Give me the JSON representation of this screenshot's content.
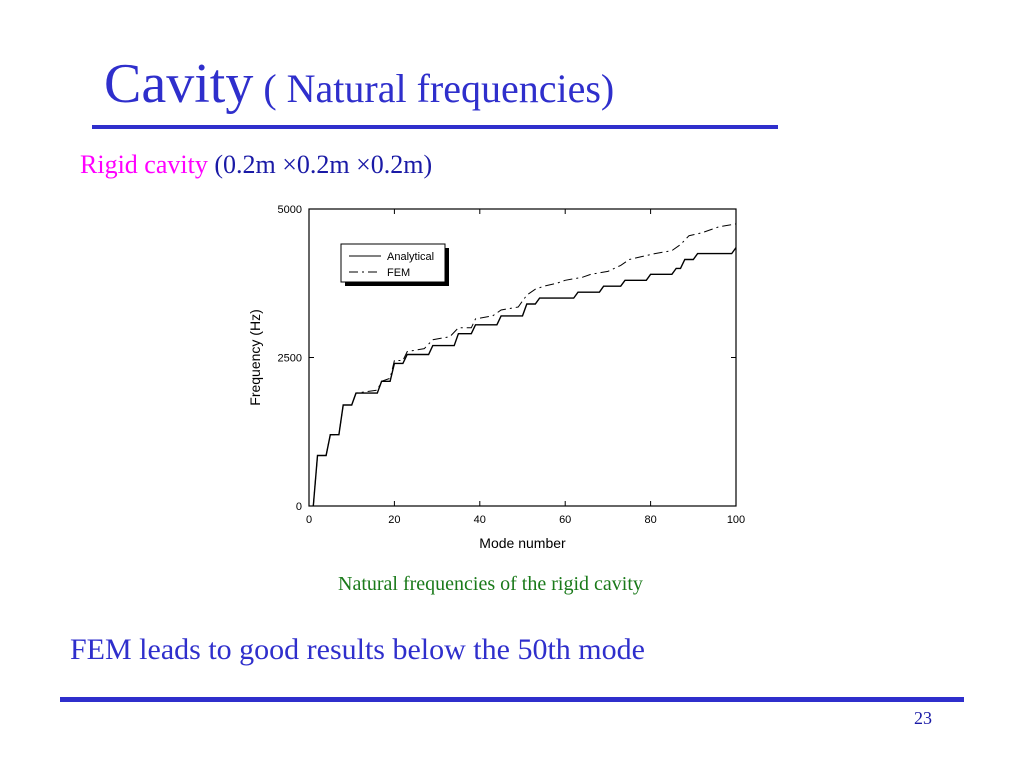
{
  "slide": {
    "title_main": "Cavity",
    "title_sub": " ( Natural frequencies)",
    "subtitle_accent": "Rigid cavity",
    "subtitle_dims": " (0.2m ×0.2m ×0.2m)",
    "caption": "Natural frequencies of the rigid cavity",
    "conclusion": "FEM leads to good results below the 50th mode",
    "page_number": "23",
    "colors": {
      "title": "#2f2fcc",
      "accent": "#ff00ff",
      "caption": "#1a7a1a"
    }
  },
  "chart_data": {
    "type": "line",
    "xlabel": "Mode number",
    "ylabel": "Frequency (Hz)",
    "xlim": [
      0,
      100
    ],
    "ylim": [
      0,
      5000
    ],
    "xticks": [
      0,
      20,
      40,
      60,
      80,
      100
    ],
    "yticks": [
      0,
      2500,
      5000
    ],
    "legend_position": "top-left",
    "series": [
      {
        "name": "Analytical",
        "style": "solid",
        "points": [
          [
            1,
            0
          ],
          [
            2,
            850
          ],
          [
            4,
            850
          ],
          [
            5,
            1200
          ],
          [
            7,
            1200
          ],
          [
            8,
            1700
          ],
          [
            10,
            1700
          ],
          [
            11,
            1900
          ],
          [
            16,
            1900
          ],
          [
            17,
            2100
          ],
          [
            19,
            2100
          ],
          [
            20,
            2400
          ],
          [
            22,
            2400
          ],
          [
            23,
            2550
          ],
          [
            28,
            2550
          ],
          [
            29,
            2700
          ],
          [
            34,
            2700
          ],
          [
            35,
            2900
          ],
          [
            38,
            2900
          ],
          [
            39,
            3050
          ],
          [
            44,
            3050
          ],
          [
            45,
            3200
          ],
          [
            50,
            3200
          ],
          [
            51,
            3400
          ],
          [
            53,
            3400
          ],
          [
            54,
            3500
          ],
          [
            62,
            3500
          ],
          [
            63,
            3600
          ],
          [
            68,
            3600
          ],
          [
            69,
            3700
          ],
          [
            73,
            3700
          ],
          [
            74,
            3800
          ],
          [
            79,
            3800
          ],
          [
            80,
            3900
          ],
          [
            85,
            3900
          ],
          [
            86,
            4000
          ],
          [
            87,
            4000
          ],
          [
            88,
            4150
          ],
          [
            90,
            4150
          ],
          [
            91,
            4250
          ],
          [
            99,
            4250
          ],
          [
            100,
            4350
          ]
        ]
      },
      {
        "name": "FEM",
        "style": "dash-dot",
        "points": [
          [
            1,
            0
          ],
          [
            2,
            850
          ],
          [
            4,
            850
          ],
          [
            5,
            1200
          ],
          [
            7,
            1200
          ],
          [
            8,
            1700
          ],
          [
            10,
            1700
          ],
          [
            11,
            1900
          ],
          [
            16,
            1950
          ],
          [
            17,
            2100
          ],
          [
            19,
            2150
          ],
          [
            20,
            2450
          ],
          [
            22,
            2450
          ],
          [
            23,
            2600
          ],
          [
            27,
            2650
          ],
          [
            29,
            2800
          ],
          [
            33,
            2850
          ],
          [
            35,
            3000
          ],
          [
            38,
            3000
          ],
          [
            39,
            3150
          ],
          [
            43,
            3200
          ],
          [
            45,
            3300
          ],
          [
            49,
            3350
          ],
          [
            51,
            3550
          ],
          [
            53,
            3650
          ],
          [
            55,
            3700
          ],
          [
            58,
            3750
          ],
          [
            60,
            3800
          ],
          [
            64,
            3850
          ],
          [
            66,
            3900
          ],
          [
            70,
            3950
          ],
          [
            73,
            4050
          ],
          [
            75,
            4150
          ],
          [
            78,
            4200
          ],
          [
            81,
            4250
          ],
          [
            85,
            4300
          ],
          [
            87,
            4400
          ],
          [
            89,
            4550
          ],
          [
            92,
            4600
          ],
          [
            96,
            4700
          ],
          [
            100,
            4750
          ]
        ]
      }
    ]
  }
}
